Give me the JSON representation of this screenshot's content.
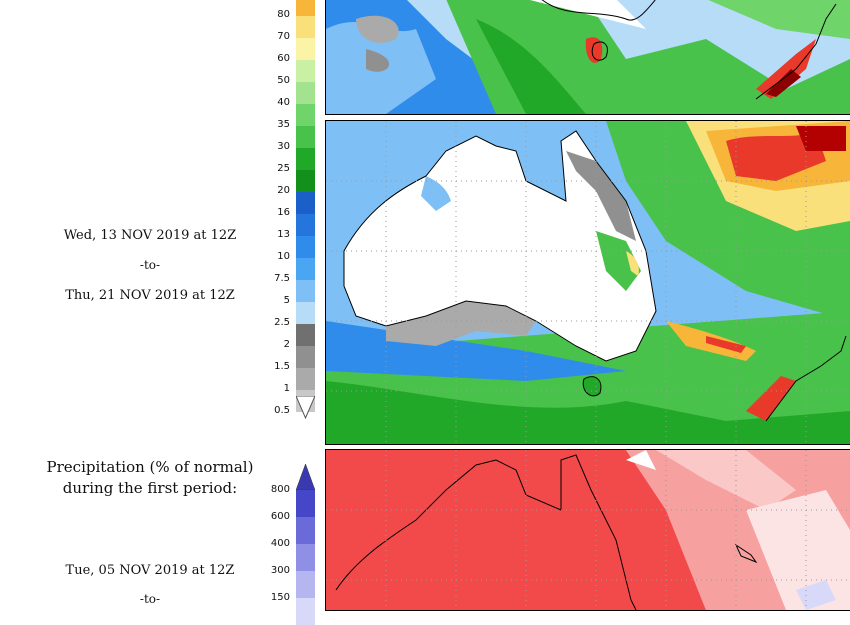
{
  "mid_period": {
    "from": "Wed, 13 NOV 2019 at 12Z",
    "sep": "-to-",
    "to": "Thu, 21 NOV 2019 at 12Z"
  },
  "bottom_section": {
    "title_line1": "Precipitation (% of normal)",
    "title_line2": "during the first period:",
    "from": "Tue, 05 NOV 2019 at 12Z",
    "sep": "-to-"
  },
  "precip_scale": {
    "labels": [
      "80",
      "70",
      "60",
      "50",
      "40",
      "35",
      "30",
      "25",
      "20",
      "16",
      "13",
      "10",
      "7.5",
      "5",
      "2.5",
      "2",
      "1.5",
      "1",
      "0.5"
    ],
    "colors": [
      "#f7b53a",
      "#f9e07a",
      "#fbf3a6",
      "#c9f0a3",
      "#a3e38f",
      "#6fd46a",
      "#48c24a",
      "#22a828",
      "#138f1c",
      "#1b5fc9",
      "#2476dc",
      "#2f8cea",
      "#4aa6f2",
      "#7ec0f6",
      "#b6dcf8",
      "#707070",
      "#909090",
      "#aaaaaa",
      "#c8c8c8"
    ]
  },
  "pct_scale": {
    "labels": [
      "800",
      "600",
      "400",
      "300",
      "150"
    ],
    "colors": [
      "#4646c8",
      "#6a6ad8",
      "#8f8fe6",
      "#b5b5f0",
      "#d8d8f8"
    ]
  }
}
